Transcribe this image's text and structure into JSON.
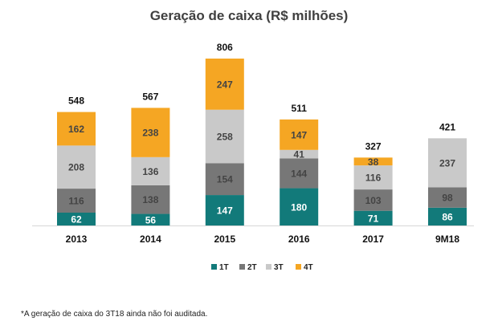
{
  "chart_data": {
    "type": "bar",
    "stacked": true,
    "title": "Geração de caixa (R$ milhões)",
    "xlabel": "",
    "ylabel": "",
    "ylim": [
      0,
      806
    ],
    "categories": [
      "2013",
      "2014",
      "2015",
      "2016",
      "2017",
      "9M18"
    ],
    "series": [
      {
        "name": "1T",
        "color": "#127a7a",
        "values": [
          62,
          56,
          147,
          180,
          71,
          86
        ]
      },
      {
        "name": "2T",
        "color": "#777777",
        "values": [
          116,
          138,
          154,
          144,
          103,
          98
        ]
      },
      {
        "name": "3T",
        "color": "#c9c9c9",
        "values": [
          208,
          136,
          258,
          41,
          116,
          237
        ]
      },
      {
        "name": "4T",
        "color": "#f5a623",
        "values": [
          162,
          238,
          247,
          147,
          38,
          null
        ]
      }
    ],
    "totals": [
      548,
      567,
      806,
      511,
      327,
      421
    ],
    "legend_position": "bottom-center",
    "grid": false
  },
  "footnote": "*A geração de caixa do 3T18 ainda não foi auditada."
}
